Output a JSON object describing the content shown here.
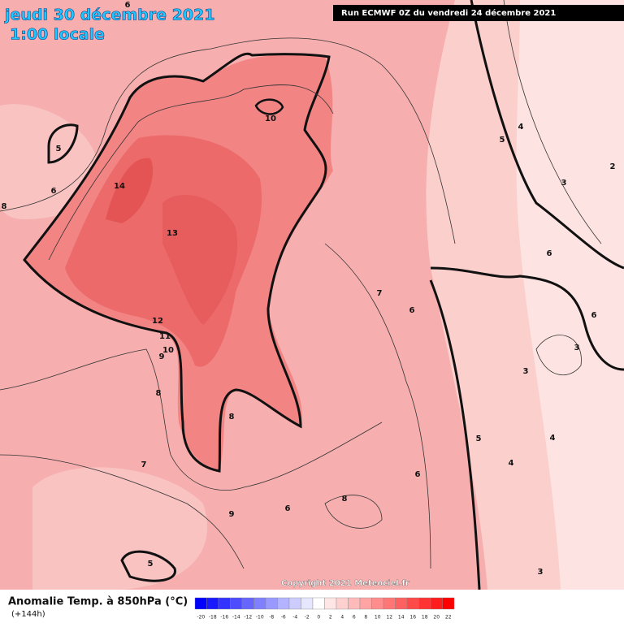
{
  "header": {
    "date": "jeudi 30 décembre 2021",
    "time": "1:00 locale",
    "run": "Run ECMWF 0Z du vendredi 24 décembre 2021"
  },
  "footer": {
    "title": "Anomalie Temp. à 850hPa (°C)",
    "lead": "(+144h)",
    "copyright": "Copyright 2021 Meteociel.fr"
  },
  "scale": {
    "values": [
      -20,
      -18,
      -16,
      -14,
      -12,
      -10,
      -8,
      -6,
      -4,
      -2,
      0,
      2,
      4,
      6,
      8,
      10,
      12,
      14,
      16,
      18,
      20,
      22
    ],
    "colors": [
      "#0000ff",
      "#1a1aff",
      "#3333ff",
      "#4d4dff",
      "#6666ff",
      "#8080ff",
      "#9999ff",
      "#b3b3ff",
      "#ccccff",
      "#e6e6ff",
      "#ffffff",
      "#ffe6e6",
      "#ffd0d0",
      "#ffbaba",
      "#ffa3a3",
      "#ff8d8d",
      "#ff7676",
      "#ff6060",
      "#ff4a4a",
      "#ff3333",
      "#ff1d1d",
      "#ff0000"
    ]
  },
  "contour_labels": [
    5,
    6,
    8,
    6,
    14,
    13,
    12,
    11,
    10,
    9,
    8,
    10,
    8,
    7,
    9,
    6,
    8,
    6,
    7,
    6,
    5,
    4,
    4,
    3,
    3,
    6,
    6,
    3,
    2,
    4,
    5,
    5,
    3
  ]
}
